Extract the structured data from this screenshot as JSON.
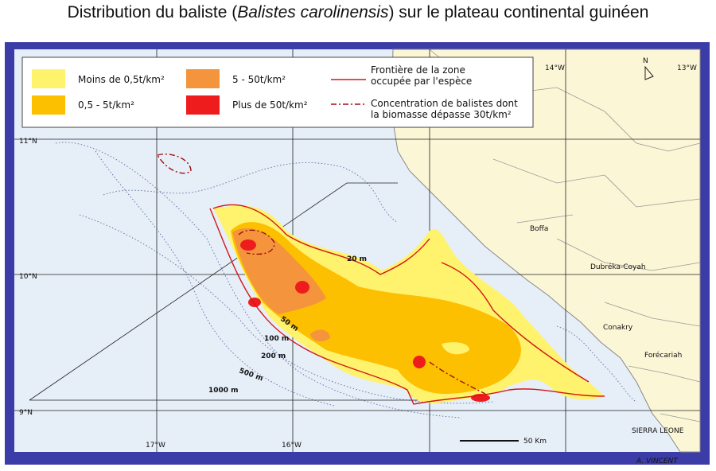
{
  "title": {
    "before": "Distribution du baliste (",
    "italic": "Balistes carolinensis",
    "after": ") sur le plateau continental guinéen"
  },
  "legend": {
    "items": [
      "Moins de 0,5t/km²",
      "0,5 - 5t/km²",
      "5 - 50t/km²",
      "Plus de 50t/km²"
    ],
    "border": [
      "Frontière de la zone",
      "occupée par l'espèce"
    ],
    "concentration": [
      "Concentration de balistes dont",
      "la biomasse dépasse 30t/km²"
    ]
  },
  "latitudes": [
    "11°N",
    "10°N",
    "9°N"
  ],
  "longitudes": [
    "17°W",
    "16°W",
    "14°W",
    "13°W"
  ],
  "depths": [
    "20 m",
    "50 m",
    "100 m",
    "200 m",
    "500 m",
    "1000 m"
  ],
  "places": [
    "Boffa",
    "Dubréka-Coyah",
    "Conakry",
    "Forécariah",
    "SIERRA LEONE"
  ],
  "north": "N",
  "scale": "50 Km",
  "signature": "A. VINCENT"
}
